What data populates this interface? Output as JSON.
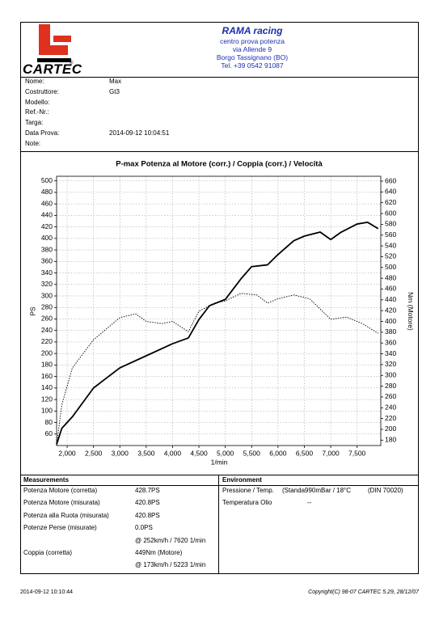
{
  "header": {
    "logo": "CARTEC",
    "company": "RAMA racing",
    "lines": [
      "centro prova potenza",
      "via Allende 9",
      "Borgo Tassignano (BO)",
      "Tel. +39 0542 91087"
    ]
  },
  "info": [
    {
      "label": "Nome:",
      "value": "Max"
    },
    {
      "label": "Costruttore:",
      "value": "Gt3"
    },
    {
      "label": "Modello:"
    },
    {
      "label": "Ref.-Nr.:"
    },
    {
      "label": "Targa:"
    },
    {
      "label": "Data Prova:",
      "value": "2014-09-12 10:04:51"
    },
    {
      "label": "Note:"
    }
  ],
  "chart_data": {
    "type": "line",
    "title": "P-max Potenza al Motore (corr.) / Coppia (corr.) / Velocità",
    "x_label": "1/min",
    "y_label": "PS",
    "y2_label": "Nm (Motore)",
    "xlim": [
      1800,
      7950
    ],
    "xticks": [
      {
        "value": 2000,
        "label": "2,000"
      },
      {
        "value": 2500,
        "label": "2,500"
      },
      {
        "value": 3000,
        "label": "3,000"
      },
      {
        "value": 3500,
        "label": "3,500"
      },
      {
        "value": 4000,
        "label": "4,000"
      },
      {
        "value": 4500,
        "label": "4,500"
      },
      {
        "value": 5000,
        "label": "5,000"
      },
      {
        "value": 5500,
        "label": "5,500"
      },
      {
        "value": 6000,
        "label": "6,000"
      },
      {
        "value": 6500,
        "label": "6,500"
      },
      {
        "value": 7000,
        "label": "7,000"
      },
      {
        "value": 7500,
        "label": "7,500"
      }
    ],
    "ylim": [
      40,
      508
    ],
    "yticks": [
      60,
      80,
      100,
      120,
      140,
      160,
      180,
      200,
      220,
      240,
      260,
      280,
      300,
      320,
      340,
      360,
      380,
      400,
      420,
      440,
      460,
      480,
      500
    ],
    "y2lim": [
      170,
      669
    ],
    "y2ticks": [
      180,
      200,
      220,
      240,
      260,
      280,
      300,
      320,
      340,
      360,
      380,
      400,
      420,
      440,
      460,
      480,
      500,
      520,
      540,
      560,
      580,
      600,
      620,
      640,
      660
    ],
    "grid": true,
    "series": [
      {
        "color": "#000000",
        "style": "solid",
        "x": [
          1800,
          1900,
          2100,
          2500,
          3000,
          3500,
          4000,
          4300,
          4500,
          4700,
          5000,
          5300,
          5500,
          5800,
          6000,
          6300,
          6500,
          6800,
          7000,
          7200,
          7500,
          7700,
          7900
        ],
        "values": [
          42,
          70,
          90,
          140,
          175,
          196,
          217,
          227,
          259,
          283,
          294,
          330,
          351,
          354,
          372,
          396,
          404,
          411,
          398,
          411,
          425,
          428,
          417
        ]
      },
      {
        "color": "#000000",
        "style": "dotted",
        "axis": "y2",
        "x": [
          1800,
          1900,
          2100,
          2500,
          3000,
          3300,
          3500,
          3800,
          4000,
          4300,
          4500,
          4800,
          5000,
          5300,
          5600,
          5800,
          6000,
          6300,
          6600,
          7000,
          7300,
          7600,
          7900
        ],
        "values": [
          170,
          246,
          314,
          366,
          407,
          414,
          400,
          396,
          400,
          381,
          419,
          434,
          438,
          452,
          449,
          434,
          442,
          449,
          442,
          404,
          408,
          396,
          378
        ]
      }
    ]
  },
  "measurements": {
    "title": "Measurements",
    "rows": [
      {
        "label": "Potenza Motore (corretta)",
        "value": "428.7PS"
      },
      {
        "label": "Potenza Motore (misurata)",
        "value": "420.8PS"
      },
      {
        "label": "Potenza alla Ruota (misurata)",
        "value": "420.8PS"
      },
      {
        "label": "Potenze Perse (misurate)",
        "value": "0.0PS"
      },
      {
        "value": "@ 252km/h / 7620 1/min"
      },
      {
        "label": "Coppia (corretta)",
        "value": "449Nm (Motore)"
      },
      {
        "value": "@ 173km/h / 5223 1/min"
      }
    ]
  },
  "environment": {
    "title": "Environment",
    "rows": [
      {
        "label": "Pressione / Temp.",
        "value": "(Standa990mBar / 18°C",
        "note": "(DIN 70020)"
      },
      {
        "label": "Temperatura Olio",
        "value": "--"
      }
    ]
  },
  "footer": {
    "date": "2014-09-12 10:10:44",
    "copyright": "Copyright(C) 98-07 CARTEC 5.29, 28/12/07"
  }
}
